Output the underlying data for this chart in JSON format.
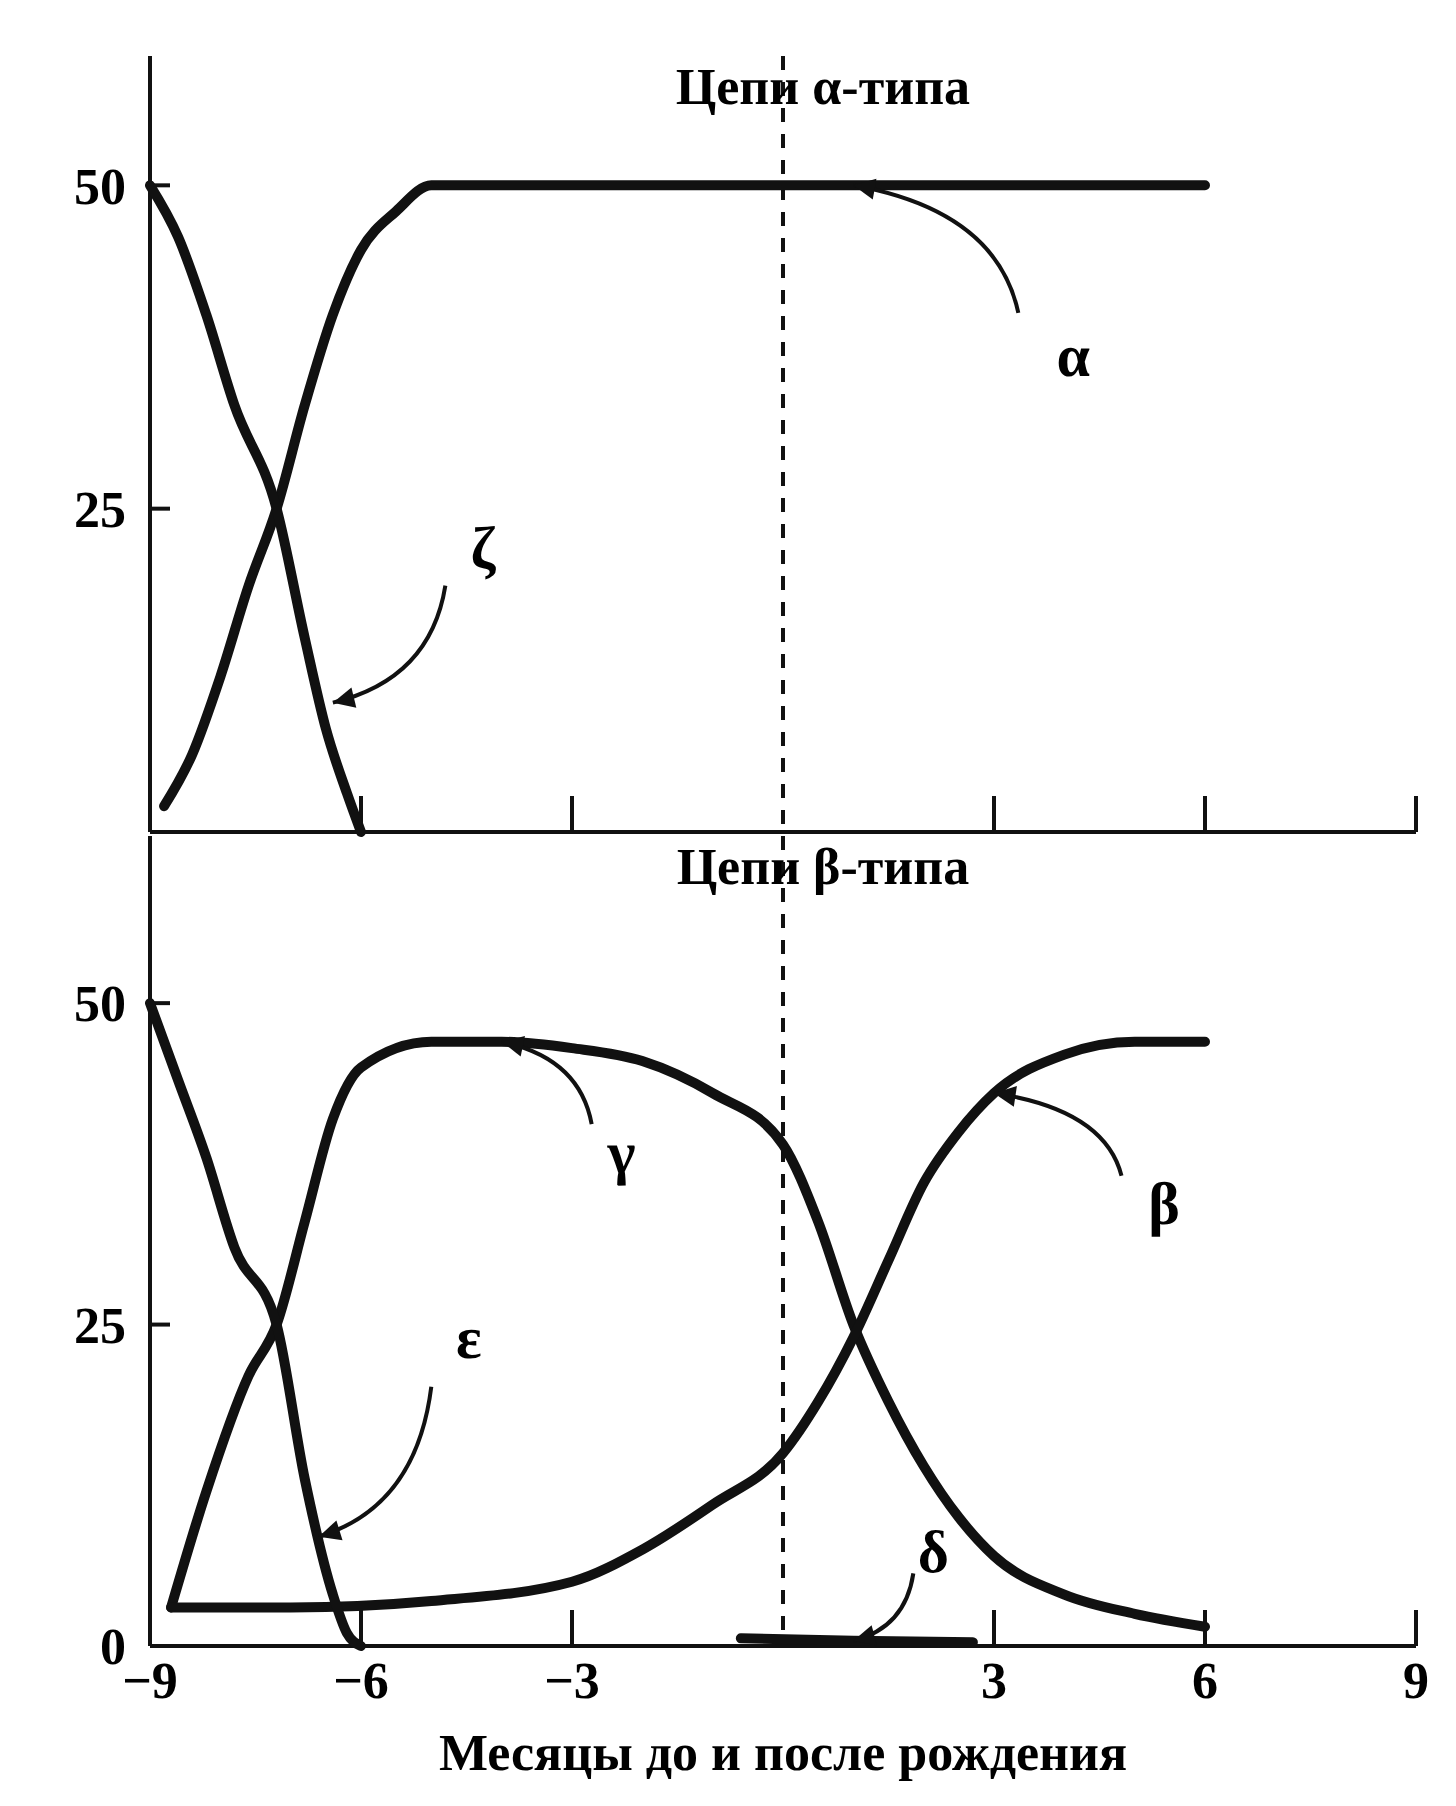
{
  "chart_data": [
    {
      "type": "line",
      "title": "Цепи α-типа",
      "xlim": [
        -9,
        9
      ],
      "xticks": [
        -9,
        -6,
        -3,
        3,
        6,
        9
      ],
      "ylim": [
        0,
        60
      ],
      "yticks": [
        25,
        50
      ],
      "tick_labels": "y",
      "series": [
        {
          "color": "#111111",
          "x": [
            -8.8,
            -8.4,
            -8,
            -7.6,
            -7.2,
            -6.8,
            -6.4,
            -6,
            -5.5,
            -5,
            6
          ],
          "values": [
            2,
            6,
            12,
            19,
            25,
            33,
            40,
            45,
            48,
            50,
            50
          ]
        },
        {
          "color": "#111111",
          "x": [
            -9,
            -8.6,
            -8.2,
            -7.8,
            -7.2,
            -6.8,
            -6.5,
            -6.2,
            -6
          ],
          "values": [
            50,
            46,
            40,
            33,
            25,
            15,
            8,
            3,
            0
          ]
        }
      ],
      "ref_lines": [
        {
          "axis": "x",
          "value": 0,
          "line_style": "dashed",
          "color": "#111111"
        }
      ],
      "annotations": [
        {
          "text": "α",
          "x": 1,
          "y": 50
        },
        {
          "text": "ζ",
          "x": -6.4,
          "y": 10
        }
      ]
    },
    {
      "type": "line",
      "title": "Цепи β-типа",
      "xlabel": "Месяцы до и после рождения",
      "xlim": [
        -9,
        9
      ],
      "xticks": [
        -9,
        -6,
        -3,
        3,
        6,
        9
      ],
      "ylim": [
        0,
        63
      ],
      "yticks": [
        0,
        25,
        50
      ],
      "series": [
        {
          "color": "#111111",
          "x": [
            -8.7,
            -8.2,
            -7.6,
            -7.2,
            -6.8,
            -6.4,
            -6,
            -5,
            -4,
            -3,
            -2,
            -1,
            0,
            0.5,
            1,
            1.5,
            2,
            2.5,
            3,
            4,
            5,
            6
          ],
          "values": [
            3,
            12,
            21,
            25,
            33,
            41,
            45,
            47,
            47,
            46.5,
            45.5,
            43,
            39,
            33,
            25,
            19,
            14,
            10,
            7,
            4,
            2.5,
            1.5
          ]
        },
        {
          "color": "#111111",
          "x": [
            -8.7,
            -7,
            -5,
            -3,
            -2,
            -1,
            0,
            0.5,
            1,
            1.5,
            2,
            2.5,
            3,
            4,
            5,
            6
          ],
          "values": [
            3,
            3,
            3.5,
            5,
            7.5,
            11,
            15,
            19,
            24,
            30,
            36,
            40,
            43,
            46,
            47,
            47
          ]
        },
        {
          "color": "#111111",
          "x": [
            -9,
            -8.6,
            -8.2,
            -7.8,
            -7.2,
            -6.8,
            -6.4,
            -6.2,
            -6
          ],
          "values": [
            50,
            44,
            38,
            31,
            25,
            13,
            4,
            1,
            0
          ]
        },
        {
          "color": "#111111",
          "x": [
            -0.6,
            1,
            2.7
          ],
          "values": [
            0.6,
            0.4,
            0.3
          ]
        }
      ],
      "ref_lines": [
        {
          "axis": "x",
          "value": 0,
          "line_style": "dashed",
          "color": "#111111"
        }
      ],
      "annotations": [
        {
          "text": "γ",
          "x": -4,
          "y": 47
        },
        {
          "text": "β",
          "x": 3,
          "y": 43
        },
        {
          "text": "ε",
          "x": -6.6,
          "y": 8.5
        },
        {
          "text": "δ",
          "x": 1,
          "y": 0.4
        }
      ]
    }
  ]
}
